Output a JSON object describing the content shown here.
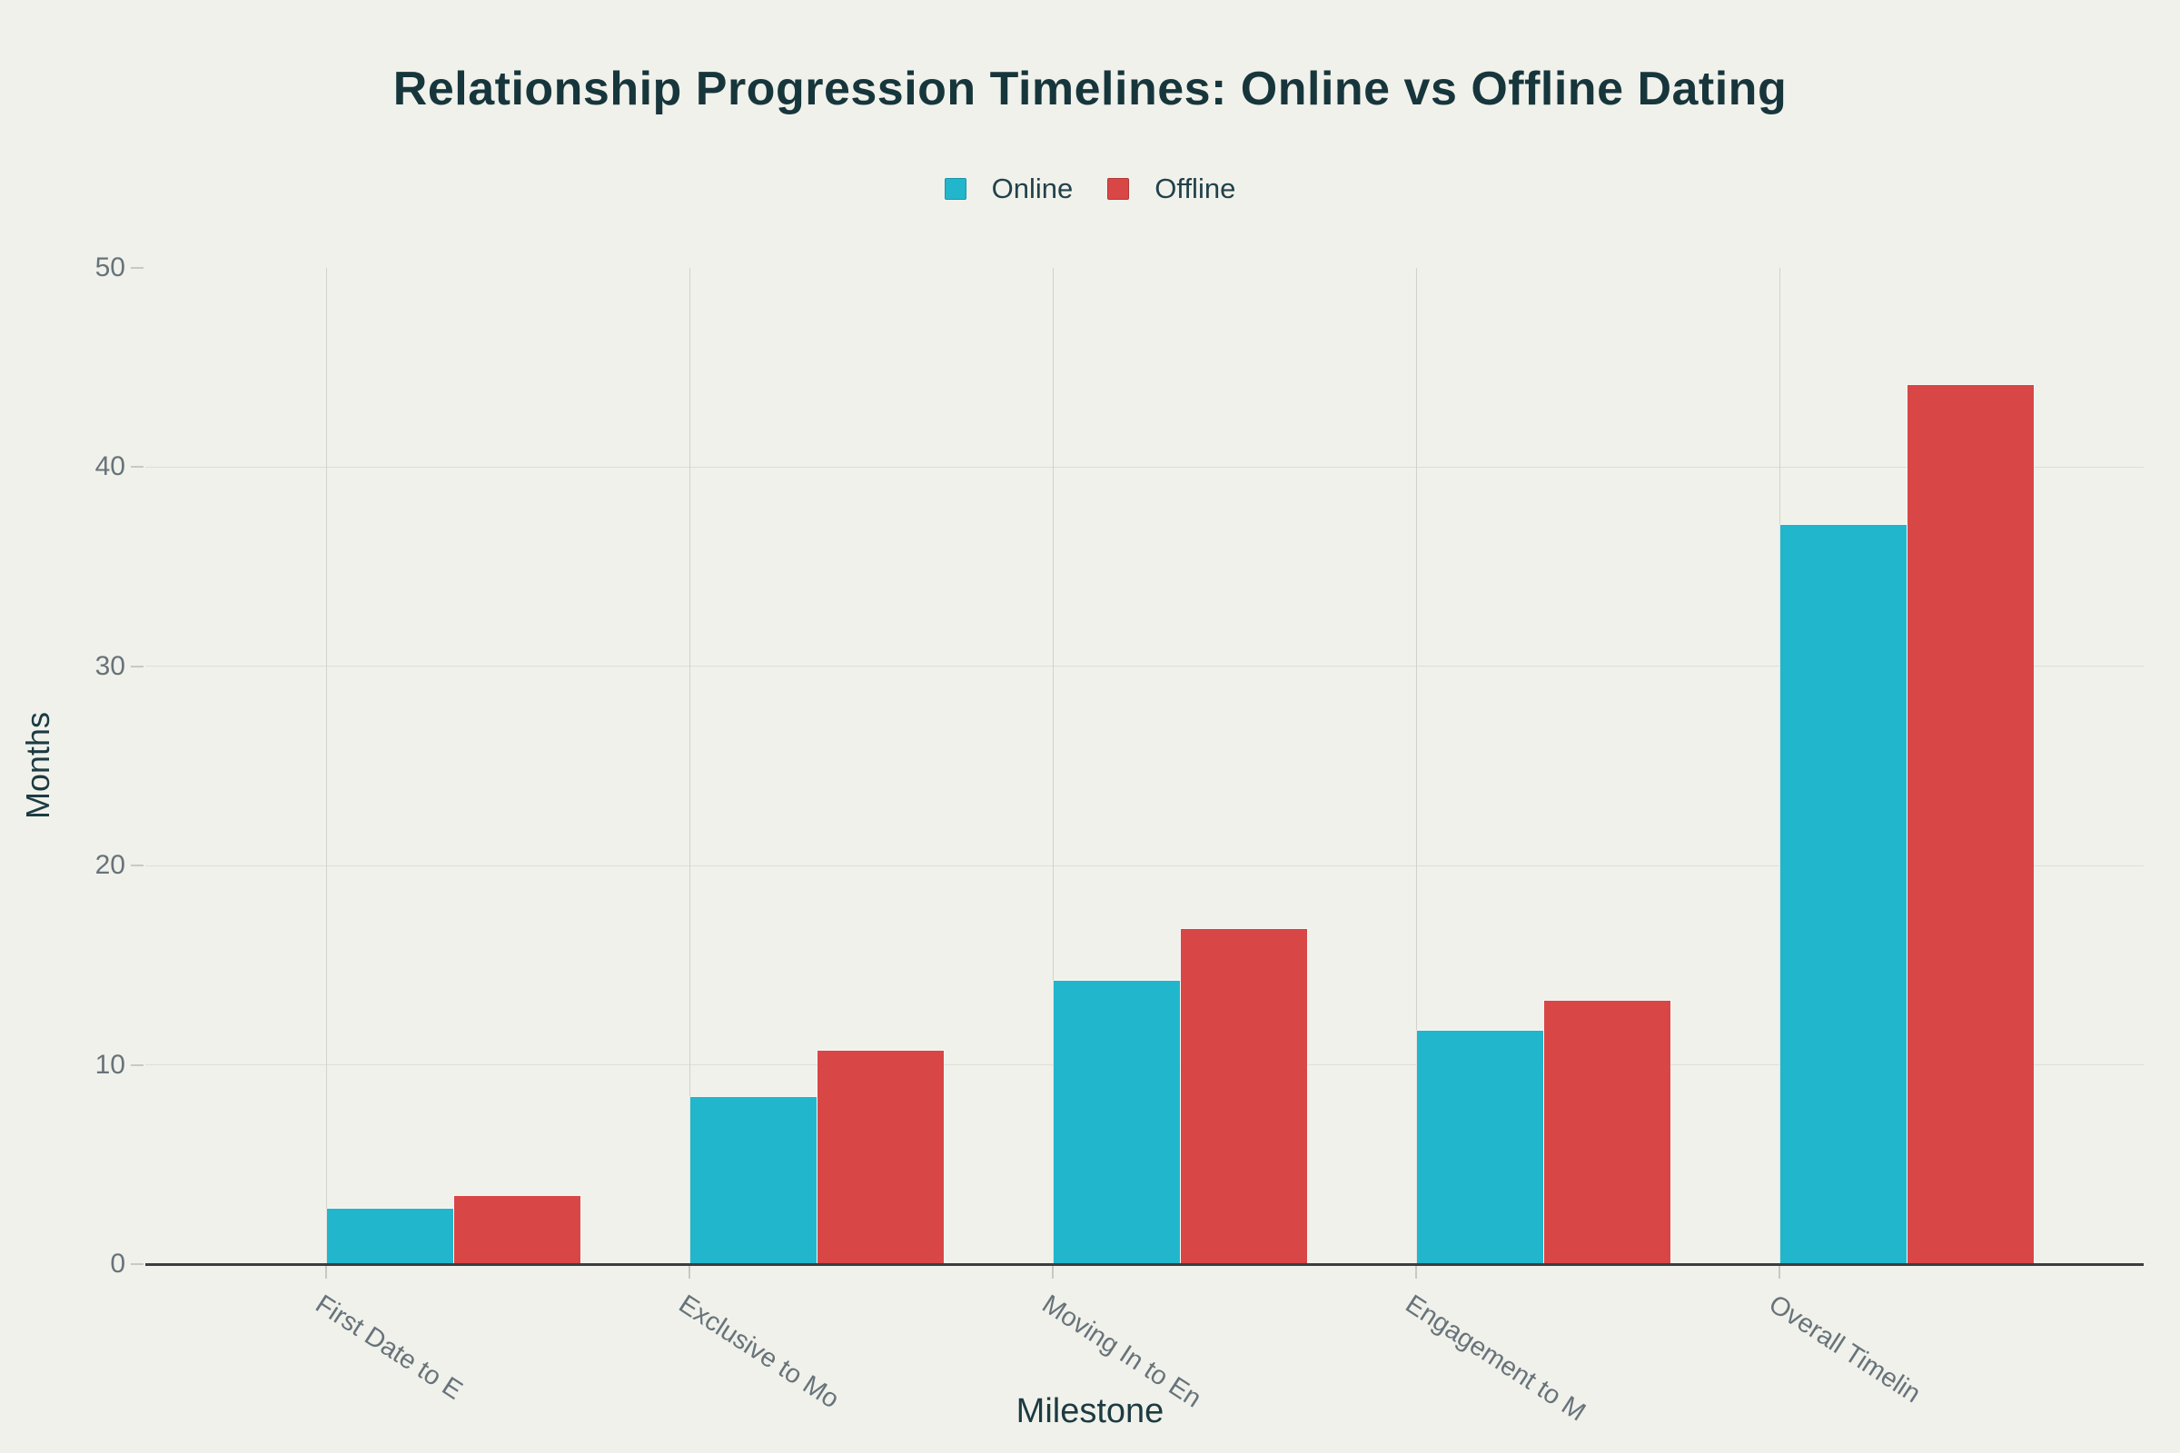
{
  "title": "Relationship Progression Timelines: Online vs Offline Dating",
  "legend": {
    "online_label": "Online",
    "offline_label": "Offline"
  },
  "colors": {
    "online": "#21B6CC",
    "offline": "#D94646",
    "background": "#F1F1EB",
    "title_text": "#17363C",
    "axis_text": "#67737A",
    "axis_title_text": "#1C3B42",
    "gridline_h": "#DEDED7",
    "gridline_v": "#D2D2CA",
    "axis_line": "#3A3E40"
  },
  "chart_data": {
    "type": "bar",
    "title": "Relationship Progression Timelines: Online vs Offline Dating",
    "categories": [
      "First Date to E",
      "Exclusive to Mo",
      "Moving In to En",
      "Engagement to M",
      "Overall Timelin"
    ],
    "series": [
      {
        "name": "Online",
        "color": "#21B6CC",
        "values": [
          2.8,
          8.4,
          14.2,
          11.7,
          37.1
        ]
      },
      {
        "name": "Offline",
        "color": "#D94646",
        "values": [
          3.4,
          10.7,
          16.8,
          13.2,
          44.1
        ]
      }
    ],
    "xlabel": "Milestone",
    "ylabel": "Months",
    "ylim": [
      0,
      50
    ],
    "yticks": [
      0,
      10,
      20,
      30,
      40,
      50
    ],
    "grid": true,
    "legend_position": "top-center"
  }
}
